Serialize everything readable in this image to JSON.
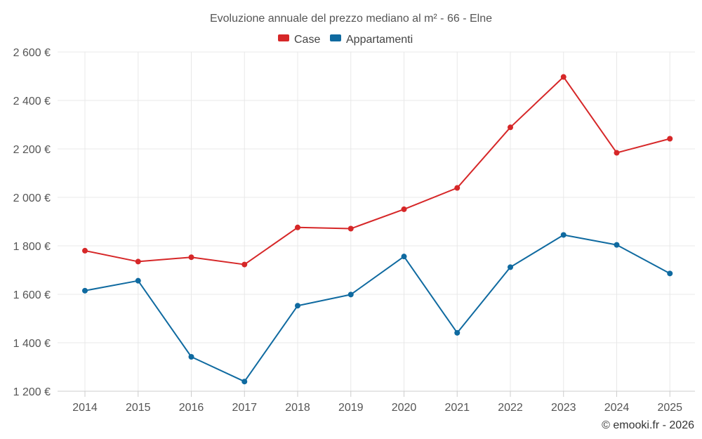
{
  "chart_data": {
    "type": "line",
    "title": "Evoluzione annuale del prezzo mediano al m² - 66 - Elne",
    "categories": [
      "2014",
      "2015",
      "2016",
      "2017",
      "2018",
      "2019",
      "2020",
      "2021",
      "2022",
      "2023",
      "2024",
      "2025"
    ],
    "series": [
      {
        "name": "Case",
        "color": "#d62728",
        "values": [
          1780,
          1735,
          1753,
          1723,
          1876,
          1871,
          1951,
          2039,
          2289,
          2497,
          2184,
          2242
        ]
      },
      {
        "name": "Appartamenti",
        "color": "#0f6aa0",
        "values": [
          1615,
          1656,
          1342,
          1240,
          1553,
          1599,
          1756,
          1441,
          1712,
          1845,
          1804,
          1686
        ]
      }
    ],
    "ylim": [
      1200,
      2600
    ],
    "yticks": [
      1200,
      1400,
      1600,
      1800,
      2000,
      2200,
      2400,
      2600
    ],
    "ytick_labels": [
      "1 200 €",
      "1 400 €",
      "1 600 €",
      "1 800 €",
      "2 000 €",
      "2 200 €",
      "2 400 €",
      "2 600 €"
    ],
    "legend_position": "top-center",
    "grid": true,
    "xlabel": "",
    "ylabel": ""
  },
  "credit": "© emooki.fr - 2026"
}
